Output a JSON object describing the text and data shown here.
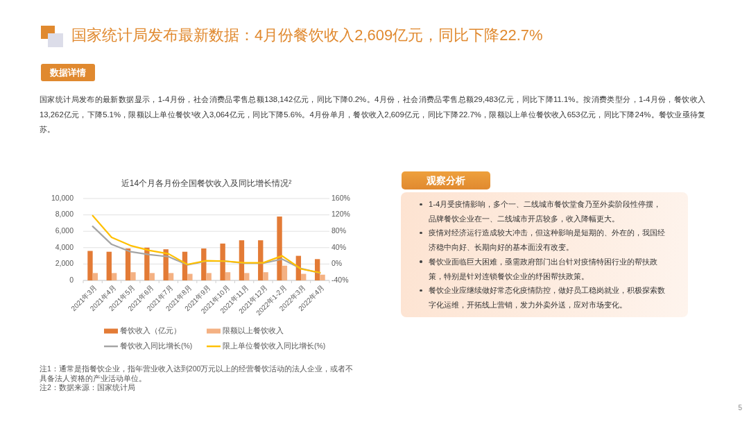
{
  "chart_data": [
    {
      "type": "other",
      "title": "国家统计局发布最新数据：4月份餐饮收入2,609亿元，同比下降22.7%",
      "subtitle": "数据详情",
      "annotations": [
        "国家统计局发布的最新数据显示，1-4月份，社会消费品零售总额138,142亿元，同比下降0.2%。4月份，社会消费品零售总额29,483亿元，同比下降11.1%。按消费类型分，1-4月份，餐饮收入13,262亿元，下降5.1%，限额以上单位餐饮¹收入3,064亿元，同比下降5.6%。4月份单月，餐饮收入2,609亿元，同比下降22.7%，限额以上单位餐饮收入653亿元，同比下降24%。餐饮业亟待复苏。",
        "5"
      ]
    },
    {
      "type": "bar",
      "title": "近14个月各月份全国餐饮收入及同比增长情况²",
      "categories": [
        "2021年3月",
        "2021年4月",
        "2021年5月",
        "2021年6月",
        "2021年7月",
        "2021年8月",
        "2021年9月",
        "2021年10月",
        "2021年11月",
        "2021年12月",
        "2022年1-2月",
        "2022年3月",
        "2022年4月"
      ],
      "series": [
        {
          "name": "餐饮收入（亿元）",
          "color": "#e37b36",
          "values": [
            3600,
            3500,
            3900,
            4000,
            3800,
            3500,
            3900,
            4500,
            4900,
            4900,
            7800,
            3000,
            2600
          ]
        },
        {
          "name": "限额以上餐饮收入",
          "color": "#f4b183",
          "values": [
            900,
            900,
            1000,
            900,
            900,
            800,
            900,
            1000,
            900,
            1000,
            1800,
            800,
            700
          ]
        },
        {
          "name": "餐饮收入同比增长(%)",
          "type": "line",
          "axis": "y2",
          "color": "#a5a5a5",
          "values": [
            92,
            48,
            30,
            23,
            18,
            -2,
            7,
            7,
            2,
            2,
            12,
            -11,
            -22
          ]
        },
        {
          "name": "限上单位餐饮收入同比增长(%)",
          "type": "line",
          "axis": "y2",
          "color": "#ffc000",
          "values": [
            118,
            65,
            45,
            33,
            25,
            -1,
            8,
            7,
            3,
            3,
            20,
            -12,
            -21
          ]
        }
      ],
      "ylim": [
        0,
        10000
      ],
      "yticks": [
        0,
        {
          "value": 2000,
          "label": "2,000"
        },
        {
          "value": 4000,
          "label": "4,000"
        },
        {
          "value": 6000,
          "label": "6,000"
        },
        {
          "value": 8000,
          "label": "8,000"
        },
        {
          "value": 10000,
          "label": "10,000"
        }
      ],
      "y2lim": [
        -40,
        160
      ],
      "y2ticks": [
        {
          "value": -40,
          "label": "-40%"
        },
        {
          "value": 0,
          "label": "0%"
        },
        {
          "value": 40,
          "label": "40%"
        },
        {
          "value": 80,
          "label": "80%"
        },
        {
          "value": 120,
          "label": "120%"
        },
        {
          "value": 160,
          "label": "160%"
        }
      ],
      "grid": "y",
      "legend": "bottom",
      "annotations": [
        "注1：通常是指餐饮企业，指年营业收入达到200万元以上的经营餐饮活动的法人企业，或者不具备法人资格的产业活动单位。",
        "注2：数据来源：国家统计局"
      ]
    },
    {
      "type": "other",
      "title": "观察分析",
      "annotations": [
        "1-4月受疫情影响，多个一、二线城市餐饮堂食乃至外卖阶段性停摆，品牌餐饮企业在一、二线城市开店较多，收入降幅更大。",
        "疫情对经济运行造成较大冲击，但这种影响是短期的、外在的，我国经济稳中向好、长期向好的基本面没有改变。",
        "餐饮业面临巨大困难，亟需政府部门出台针对疫情特困行业的帮扶政策，特别是针对连锁餐饮企业的纾困帮扶政策。",
        "餐饮企业应继续做好常态化疫情防控，做好员工稳岗就业，积极探索数字化运维，开拓线上营销，发力外卖外送，应对市场变化。"
      ]
    }
  ]
}
